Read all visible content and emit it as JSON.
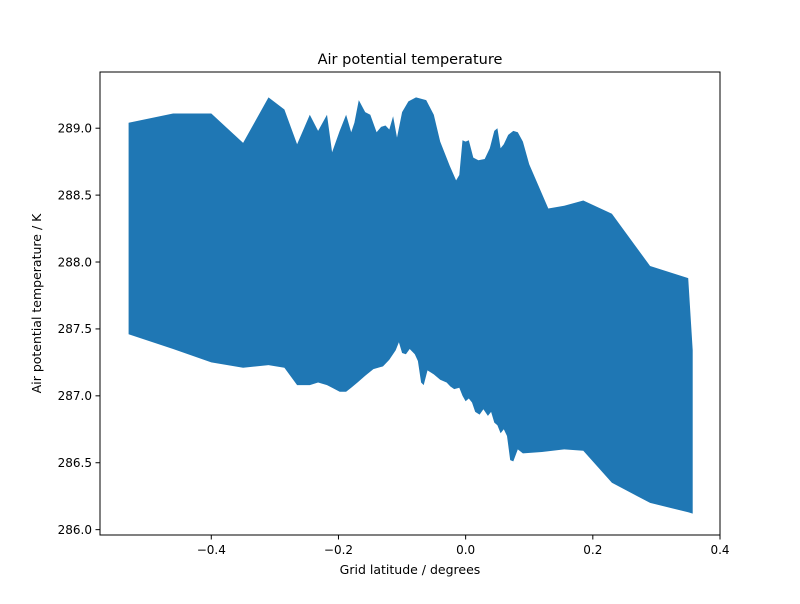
{
  "chart_data": {
    "type": "area",
    "title": "Air potential temperature",
    "xlabel": "Grid latitude / degrees",
    "ylabel": "Air potential temperature / K",
    "xlim": [
      -0.575,
      0.4
    ],
    "ylim": [
      285.96,
      289.42
    ],
    "grid": false,
    "legend": "none",
    "fill_color": "#1f77b4",
    "x_ticks": [
      -0.4,
      -0.2,
      0.0,
      0.2,
      0.4
    ],
    "x_tick_labels": [
      "−0.4",
      "−0.2",
      "0.0",
      "0.2",
      "0.4"
    ],
    "y_ticks": [
      286.0,
      286.5,
      287.0,
      287.5,
      288.0,
      288.5,
      289.0
    ],
    "y_tick_labels": [
      "286.0",
      "286.5",
      "287.0",
      "287.5",
      "288.0",
      "288.5",
      "289.0"
    ],
    "upper": [
      [
        -0.53,
        289.04
      ],
      [
        -0.46,
        289.11
      ],
      [
        -0.4,
        289.11
      ],
      [
        -0.35,
        288.89
      ],
      [
        -0.31,
        289.23
      ],
      [
        -0.285,
        289.14
      ],
      [
        -0.265,
        288.88
      ],
      [
        -0.245,
        289.1
      ],
      [
        -0.232,
        288.98
      ],
      [
        -0.218,
        289.1
      ],
      [
        -0.21,
        288.82
      ],
      [
        -0.198,
        288.98
      ],
      [
        -0.188,
        289.1
      ],
      [
        -0.18,
        288.97
      ],
      [
        -0.175,
        289.04
      ],
      [
        -0.168,
        289.21
      ],
      [
        -0.158,
        289.12
      ],
      [
        -0.15,
        289.1
      ],
      [
        -0.14,
        288.97
      ],
      [
        -0.133,
        289.01
      ],
      [
        -0.126,
        289.02
      ],
      [
        -0.12,
        288.99
      ],
      [
        -0.114,
        289.09
      ],
      [
        -0.108,
        288.93
      ],
      [
        -0.1,
        289.12
      ],
      [
        -0.09,
        289.2
      ],
      [
        -0.078,
        289.23
      ],
      [
        -0.062,
        289.21
      ],
      [
        -0.05,
        289.1
      ],
      [
        -0.04,
        288.9
      ],
      [
        -0.025,
        288.72
      ],
      [
        -0.015,
        288.61
      ],
      [
        -0.01,
        288.65
      ],
      [
        -0.005,
        288.91
      ],
      [
        0.0,
        288.9
      ],
      [
        0.005,
        288.91
      ],
      [
        0.012,
        288.78
      ],
      [
        0.02,
        288.76
      ],
      [
        0.03,
        288.77
      ],
      [
        0.038,
        288.85
      ],
      [
        0.045,
        288.98
      ],
      [
        0.05,
        289.0
      ],
      [
        0.055,
        288.85
      ],
      [
        0.06,
        288.88
      ],
      [
        0.067,
        288.95
      ],
      [
        0.075,
        288.98
      ],
      [
        0.082,
        288.97
      ],
      [
        0.09,
        288.9
      ],
      [
        0.1,
        288.73
      ],
      [
        0.13,
        288.4
      ],
      [
        0.155,
        288.42
      ],
      [
        0.185,
        288.46
      ],
      [
        0.23,
        288.36
      ],
      [
        0.29,
        287.97
      ],
      [
        0.35,
        287.88
      ],
      [
        0.357,
        287.34
      ]
    ],
    "lower": [
      [
        -0.53,
        287.46
      ],
      [
        -0.46,
        287.35
      ],
      [
        -0.4,
        287.25
      ],
      [
        -0.35,
        287.21
      ],
      [
        -0.31,
        287.23
      ],
      [
        -0.285,
        287.21
      ],
      [
        -0.265,
        287.08
      ],
      [
        -0.245,
        287.08
      ],
      [
        -0.232,
        287.1
      ],
      [
        -0.218,
        287.08
      ],
      [
        -0.21,
        287.06
      ],
      [
        -0.198,
        287.03
      ],
      [
        -0.188,
        287.03
      ],
      [
        -0.18,
        287.06
      ],
      [
        -0.17,
        287.1
      ],
      [
        -0.158,
        287.15
      ],
      [
        -0.145,
        287.2
      ],
      [
        -0.13,
        287.22
      ],
      [
        -0.12,
        287.27
      ],
      [
        -0.11,
        287.34
      ],
      [
        -0.105,
        287.4
      ],
      [
        -0.1,
        287.32
      ],
      [
        -0.094,
        287.31
      ],
      [
        -0.088,
        287.35
      ],
      [
        -0.08,
        287.31
      ],
      [
        -0.075,
        287.26
      ],
      [
        -0.07,
        287.1
      ],
      [
        -0.066,
        287.08
      ],
      [
        -0.06,
        287.19
      ],
      [
        -0.05,
        287.16
      ],
      [
        -0.04,
        287.12
      ],
      [
        -0.03,
        287.1
      ],
      [
        -0.024,
        287.07
      ],
      [
        -0.018,
        287.05
      ],
      [
        -0.01,
        287.06
      ],
      [
        -0.005,
        287.0
      ],
      [
        0.0,
        286.96
      ],
      [
        0.005,
        286.98
      ],
      [
        0.01,
        286.95
      ],
      [
        0.015,
        286.88
      ],
      [
        0.022,
        286.86
      ],
      [
        0.028,
        286.9
      ],
      [
        0.035,
        286.85
      ],
      [
        0.04,
        286.88
      ],
      [
        0.045,
        286.8
      ],
      [
        0.05,
        286.78
      ],
      [
        0.055,
        286.72
      ],
      [
        0.06,
        286.75
      ],
      [
        0.065,
        286.7
      ],
      [
        0.07,
        286.52
      ],
      [
        0.075,
        286.51
      ],
      [
        0.082,
        286.6
      ],
      [
        0.09,
        286.57
      ],
      [
        0.12,
        286.58
      ],
      [
        0.155,
        286.6
      ],
      [
        0.185,
        286.59
      ],
      [
        0.23,
        286.35
      ],
      [
        0.29,
        286.2
      ],
      [
        0.35,
        286.13
      ],
      [
        0.357,
        286.12
      ]
    ]
  }
}
